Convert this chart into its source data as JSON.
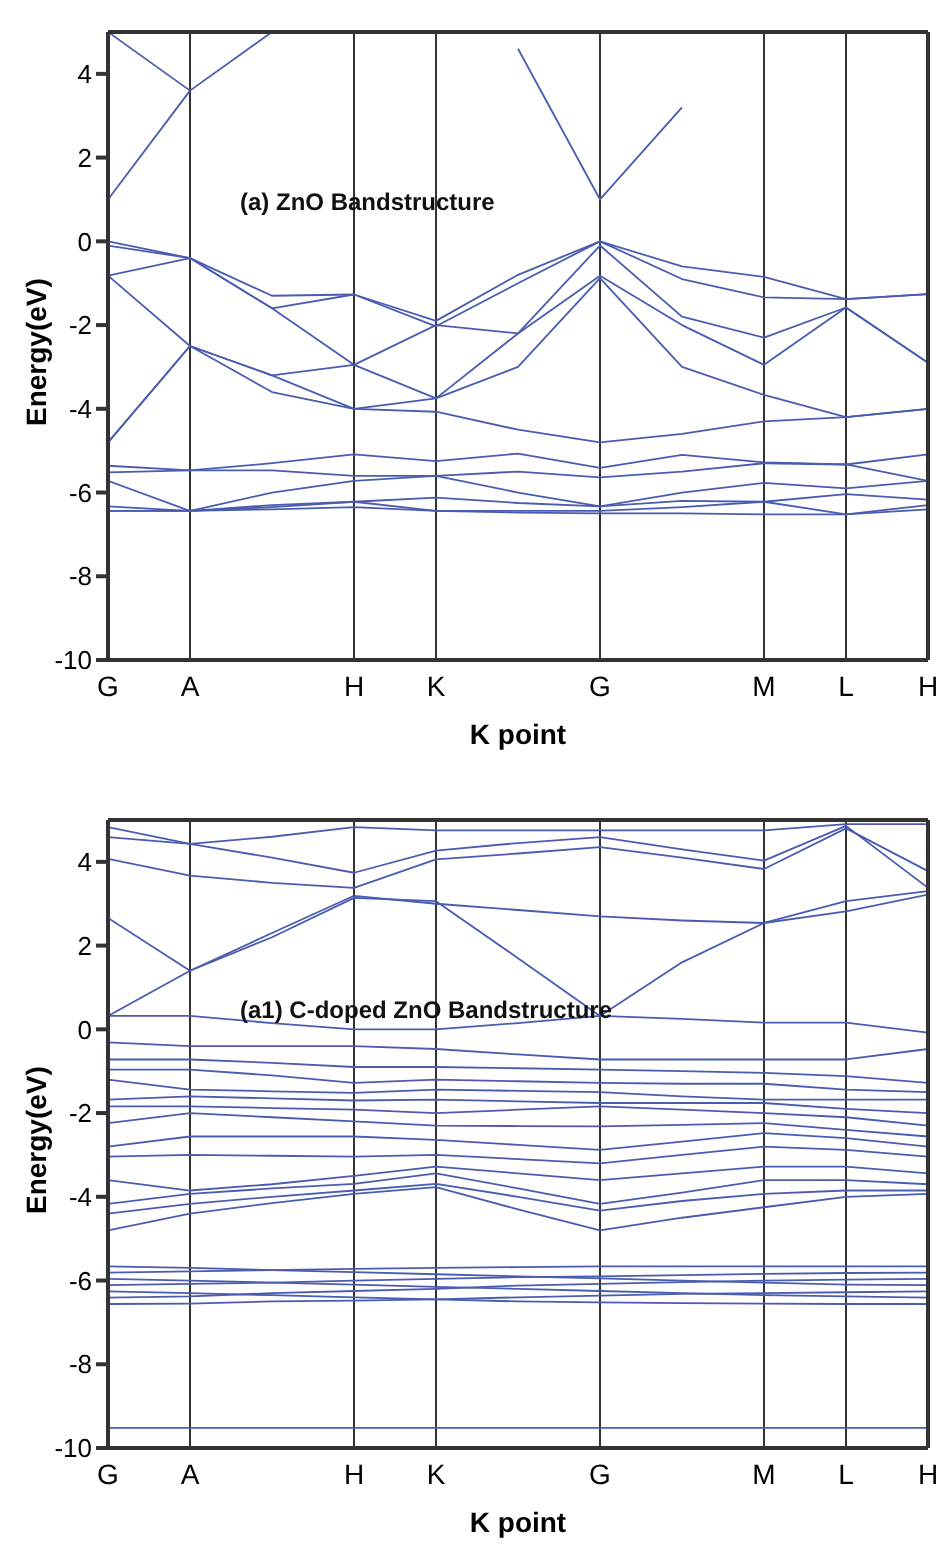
{
  "chart_data": [
    {
      "type": "line",
      "title": "(a) ZnO Bandstructure",
      "xlabel": "K point",
      "ylabel": "Energy(eV)",
      "color": "#4a5cb0",
      "grid": "x",
      "categories": [
        "G",
        "A",
        null,
        "H",
        "K",
        null,
        "G",
        null,
        "M",
        "L",
        "H"
      ],
      "ylim": [
        -10,
        5
      ],
      "yticks": [
        -10,
        -8,
        -6,
        -4,
        -2,
        0,
        2,
        4
      ],
      "series": [
        {
          "values": [
            1.0,
            3.6,
            5.0,
            null,
            null,
            null,
            null,
            null,
            null,
            null,
            null
          ]
        },
        {
          "values": [
            5.0,
            3.6,
            null,
            null,
            null,
            null,
            null,
            null,
            null,
            null,
            null
          ]
        },
        {
          "values": [
            null,
            null,
            null,
            null,
            null,
            4.6,
            1.0,
            3.2,
            null,
            null,
            null
          ]
        },
        {
          "values": [
            0,
            -0.4,
            -1.3,
            -1.27,
            -1.9,
            -0.8,
            0,
            -0.6,
            -0.85,
            -1.38,
            -1.26
          ]
        },
        {
          "values": [
            -0.1,
            -0.4,
            -1.6,
            -1.27,
            -2.03,
            -1.0,
            0,
            -0.9,
            -1.34,
            -1.38,
            -1.26
          ]
        },
        {
          "values": [
            -0.82,
            -0.4,
            -1.6,
            -2.95,
            -2.0,
            -2.2,
            -0.1,
            -1.8,
            -2.3,
            -1.58,
            -2.9
          ]
        },
        {
          "values": [
            -0.82,
            -2.5,
            -3.2,
            -2.95,
            -3.75,
            -2.2,
            -0.82,
            -2.0,
            -2.95,
            -1.58,
            -2.9
          ]
        },
        {
          "values": [
            -4.8,
            -2.5,
            -3.2,
            -4.0,
            -3.75,
            -3.0,
            -0.88,
            -3.0,
            -3.67,
            -4.2,
            -4.0
          ]
        },
        {
          "values": [
            -4.8,
            -2.5,
            -3.6,
            -4.0,
            -4.07,
            -4.5,
            -4.8,
            -4.6,
            -4.3,
            -4.2,
            -4.0
          ]
        },
        {
          "values": [
            -5.36,
            -5.47,
            -5.3,
            -5.09,
            -5.25,
            -5.07,
            -5.41,
            -5.1,
            -5.28,
            -5.33,
            -5.09
          ]
        },
        {
          "values": [
            -5.52,
            -5.47,
            -5.47,
            -5.6,
            -5.6,
            -5.5,
            -5.64,
            -5.5,
            -5.3,
            -5.33,
            -5.72
          ]
        },
        {
          "values": [
            -5.72,
            -6.44,
            -6.0,
            -5.72,
            -5.6,
            -6.0,
            -6.33,
            -6.0,
            -5.77,
            -5.9,
            -5.72
          ]
        },
        {
          "values": [
            -6.33,
            -6.44,
            -6.3,
            -6.22,
            -6.12,
            -6.25,
            -6.33,
            -6.2,
            -6.22,
            -6.04,
            -6.17
          ]
        },
        {
          "values": [
            -6.44,
            -6.44,
            -6.35,
            -6.22,
            -6.44,
            -6.44,
            -6.44,
            -6.35,
            -6.22,
            -6.52,
            -6.3
          ]
        },
        {
          "values": [
            -6.44,
            -6.44,
            -6.4,
            -6.35,
            -6.44,
            -6.48,
            -6.5,
            -6.5,
            -6.52,
            -6.52,
            -6.4
          ]
        }
      ]
    },
    {
      "type": "line",
      "title": "(a1) C-doped ZnO Bandstructure",
      "xlabel": "K point",
      "ylabel": "Energy(eV)",
      "color": "#4a5cb0",
      "grid": "x",
      "categories": [
        "G",
        "A",
        null,
        "H",
        "K",
        null,
        "G",
        null,
        "M",
        "L",
        "H"
      ],
      "ylim": [
        -10,
        5
      ],
      "yticks": [
        -10,
        -8,
        -6,
        -4,
        -2,
        0,
        2,
        4
      ],
      "series": [
        {
          "values": [
            4.83,
            4.43,
            4.6,
            4.83,
            4.75,
            4.75,
            4.75,
            4.75,
            4.75,
            4.9,
            4.9
          ]
        },
        {
          "values": [
            4.59,
            4.43,
            4.1,
            3.74,
            4.27,
            4.45,
            4.59,
            4.3,
            4.03,
            4.86,
            3.38
          ]
        },
        {
          "values": [
            4.07,
            3.67,
            3.5,
            3.38,
            4.06,
            4.2,
            4.35,
            4.1,
            3.83,
            4.8,
            3.78
          ]
        },
        {
          "values": [
            2.66,
            1.4,
            2.3,
            3.19,
            3.0,
            2.85,
            2.7,
            2.6,
            2.54,
            3.06,
            3.3
          ]
        },
        {
          "values": [
            0.32,
            1.4,
            2.2,
            3.14,
            3.06,
            1.7,
            0.32,
            1.6,
            2.54,
            2.82,
            3.22
          ]
        },
        {
          "values": [
            0.32,
            0.32,
            0.15,
            0.0,
            0.0,
            0.15,
            0.32,
            0.25,
            0.16,
            0.16,
            -0.08
          ]
        },
        {
          "values": [
            -0.31,
            -0.4,
            -0.4,
            -0.4,
            -0.47,
            -0.6,
            -0.72,
            -0.72,
            -0.72,
            -0.72,
            -0.47
          ]
        },
        {
          "values": [
            -0.72,
            -0.72,
            -0.8,
            -0.9,
            -0.9,
            -0.93,
            -0.96,
            -1.0,
            -1.04,
            -1.12,
            -1.28
          ]
        },
        {
          "values": [
            -0.96,
            -0.96,
            -1.1,
            -1.28,
            -1.2,
            -1.24,
            -1.28,
            -1.3,
            -1.3,
            -1.44,
            -1.5
          ]
        },
        {
          "values": [
            -1.2,
            -1.44,
            -1.48,
            -1.52,
            -1.44,
            -1.47,
            -1.5,
            -1.6,
            -1.68,
            -1.68,
            -1.68
          ]
        },
        {
          "values": [
            -1.68,
            -1.6,
            -1.65,
            -1.7,
            -1.68,
            -1.72,
            -1.76,
            -1.76,
            -1.76,
            -1.9,
            -2.0
          ]
        },
        {
          "values": [
            -1.84,
            -1.84,
            -1.88,
            -1.92,
            -2.0,
            -1.92,
            -1.84,
            -1.92,
            -2.0,
            -2.1,
            -2.3
          ]
        },
        {
          "values": [
            -2.24,
            -2.0,
            -2.1,
            -2.2,
            -2.3,
            -2.31,
            -2.32,
            -2.28,
            -2.24,
            -2.4,
            -2.56
          ]
        },
        {
          "values": [
            -2.8,
            -2.56,
            -2.56,
            -2.56,
            -2.64,
            -2.76,
            -2.88,
            -2.68,
            -2.48,
            -2.6,
            -2.8
          ]
        },
        {
          "values": [
            -3.04,
            -3.0,
            -3.02,
            -3.04,
            -3.0,
            -3.1,
            -3.2,
            -3.0,
            -2.8,
            -2.88,
            -3.04
          ]
        },
        {
          "values": [
            -3.6,
            -3.85,
            -3.7,
            -3.5,
            -3.28,
            -3.44,
            -3.6,
            -3.44,
            -3.28,
            -3.28,
            -3.44
          ]
        },
        {
          "values": [
            -4.17,
            -3.93,
            -3.8,
            -3.69,
            -3.44,
            -3.8,
            -4.17,
            -3.9,
            -3.6,
            -3.6,
            -3.7
          ]
        },
        {
          "values": [
            -4.4,
            -4.17,
            -4.0,
            -3.85,
            -3.69,
            -4.0,
            -4.33,
            -4.1,
            -3.93,
            -3.85,
            -3.85
          ]
        },
        {
          "values": [
            -4.8,
            -4.4,
            -4.15,
            -3.93,
            -3.77,
            -4.3,
            -4.8,
            -4.5,
            -4.25,
            -4.0,
            -3.93
          ]
        },
        {
          "values": [
            -5.66,
            -5.7,
            -5.75,
            -5.8,
            -5.85,
            -5.9,
            -5.95,
            -6.0,
            -6.05,
            -6.1,
            -6.11
          ]
        },
        {
          "values": [
            -5.81,
            -5.78,
            -5.75,
            -5.72,
            -5.7,
            -5.68,
            -5.66,
            -5.66,
            -5.66,
            -5.66,
            -5.66
          ]
        },
        {
          "values": [
            -5.96,
            -6.0,
            -6.05,
            -6.1,
            -6.15,
            -6.2,
            -6.25,
            -6.3,
            -6.35,
            -6.38,
            -6.41
          ]
        },
        {
          "values": [
            -6.11,
            -6.08,
            -6.05,
            -6.0,
            -5.96,
            -5.92,
            -5.9,
            -5.87,
            -5.84,
            -5.82,
            -5.81
          ]
        },
        {
          "values": [
            -6.26,
            -6.3,
            -6.35,
            -6.4,
            -6.45,
            -6.5,
            -6.52,
            -6.54,
            -6.55,
            -6.56,
            -6.56
          ]
        },
        {
          "values": [
            -6.41,
            -6.38,
            -6.3,
            -6.25,
            -6.2,
            -6.12,
            -6.08,
            -6.04,
            -6.0,
            -5.98,
            -5.96
          ]
        },
        {
          "values": [
            -6.56,
            -6.55,
            -6.5,
            -6.48,
            -6.45,
            -6.4,
            -6.36,
            -6.32,
            -6.3,
            -6.28,
            -6.26
          ]
        },
        {
          "values": [
            -9.52,
            -9.52,
            -9.52,
            -9.52,
            -9.52,
            -9.52,
            -9.52,
            -9.52,
            -9.52,
            -9.52,
            -9.52
          ]
        }
      ]
    }
  ]
}
